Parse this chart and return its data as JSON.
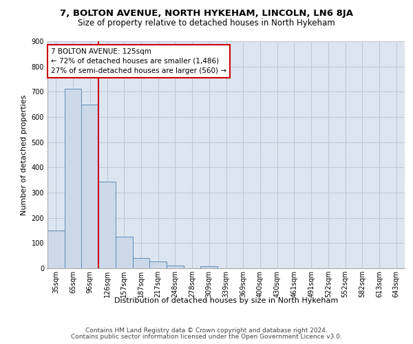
{
  "title1": "7, BOLTON AVENUE, NORTH HYKEHAM, LINCOLN, LN6 8JA",
  "title2": "Size of property relative to detached houses in North Hykeham",
  "xlabel": "Distribution of detached houses by size in North Hykeham",
  "ylabel": "Number of detached properties",
  "categories": [
    "35sqm",
    "65sqm",
    "96sqm",
    "126sqm",
    "157sqm",
    "187sqm",
    "217sqm",
    "248sqm",
    "278sqm",
    "309sqm",
    "339sqm",
    "369sqm",
    "400sqm",
    "430sqm",
    "461sqm",
    "491sqm",
    "522sqm",
    "552sqm",
    "582sqm",
    "613sqm",
    "643sqm"
  ],
  "values": [
    150,
    712,
    650,
    345,
    125,
    40,
    28,
    10,
    0,
    8,
    0,
    0,
    0,
    0,
    0,
    0,
    0,
    0,
    0,
    0,
    0
  ],
  "bar_color": "#ccd9e8",
  "bar_edge_color": "#5b8db8",
  "grid_color": "#c0c8d8",
  "bg_color": "#dde6f0",
  "vline_color": "#cc0000",
  "annotation_text": "7 BOLTON AVENUE: 125sqm\n← 72% of detached houses are smaller (1,486)\n27% of semi-detached houses are larger (560) →",
  "annotation_box_color": "#ffffff",
  "annotation_box_edge": "#cc0000",
  "ylim": [
    0,
    900
  ],
  "yticks": [
    0,
    100,
    200,
    300,
    400,
    500,
    600,
    700,
    800,
    900
  ],
  "footer1": "Contains HM Land Registry data © Crown copyright and database right 2024.",
  "footer2": "Contains public sector information licensed under the Open Government Licence v3.0.",
  "title1_fontsize": 9.5,
  "title2_fontsize": 8.5,
  "xlabel_fontsize": 8,
  "ylabel_fontsize": 8,
  "tick_fontsize": 7,
  "footer_fontsize": 6.5,
  "ann_fontsize": 7.5
}
